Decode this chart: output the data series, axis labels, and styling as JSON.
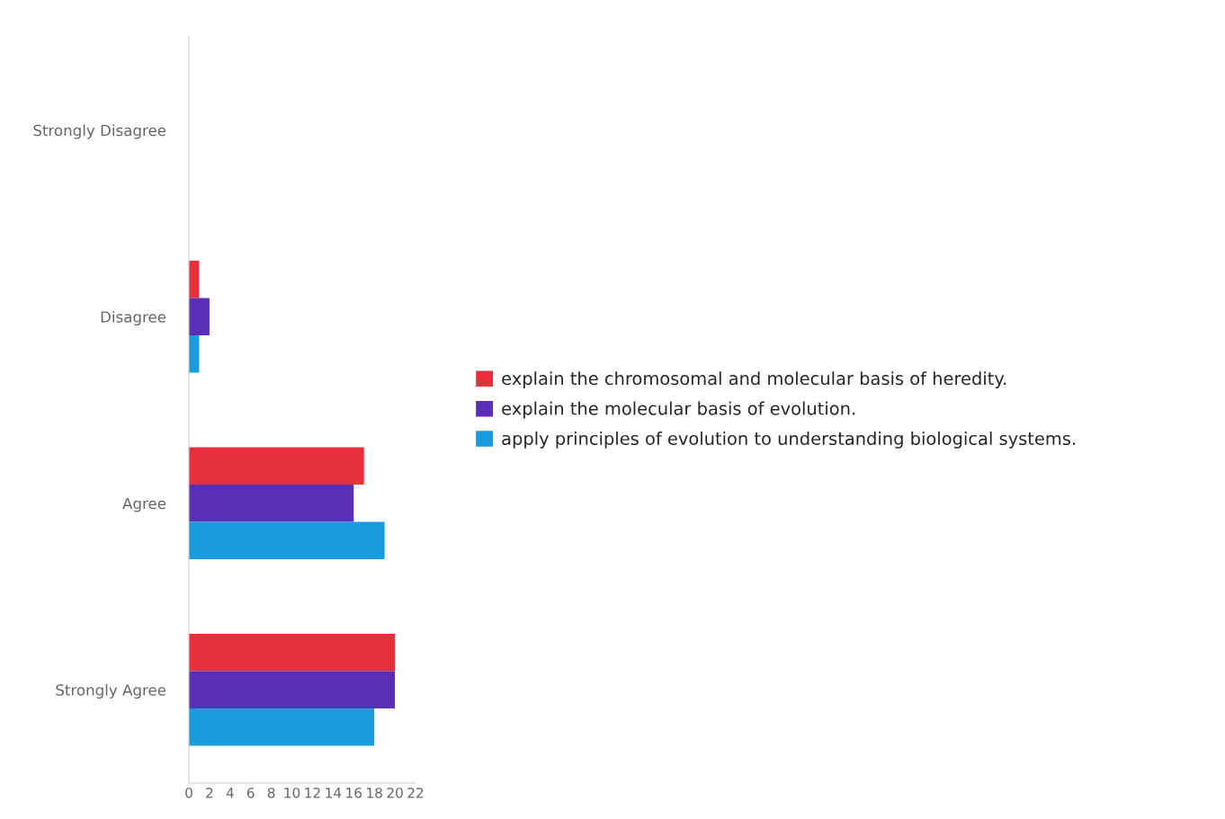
{
  "chart_data": {
    "type": "bar",
    "orientation": "horizontal",
    "categories": [
      "Strongly Disagree",
      "Disagree",
      "Agree",
      "Strongly Agree"
    ],
    "series": [
      {
        "name": "explain the chromosomal and molecular basis of heredity.",
        "color": "#e8303a",
        "values": [
          0,
          1,
          17,
          20
        ]
      },
      {
        "name": "explain the molecular basis of evolution.",
        "color": "#5b2fb5",
        "values": [
          0,
          2,
          16,
          20
        ]
      },
      {
        "name": "apply principles of evolution to understanding biological systems.",
        "color": "#1a9be0",
        "values": [
          0,
          1,
          19,
          18
        ]
      }
    ],
    "xlim": [
      0,
      22
    ],
    "xticks": [
      0,
      2,
      4,
      6,
      8,
      10,
      12,
      14,
      16,
      18,
      20,
      22
    ],
    "grid": false,
    "legend": "right"
  }
}
